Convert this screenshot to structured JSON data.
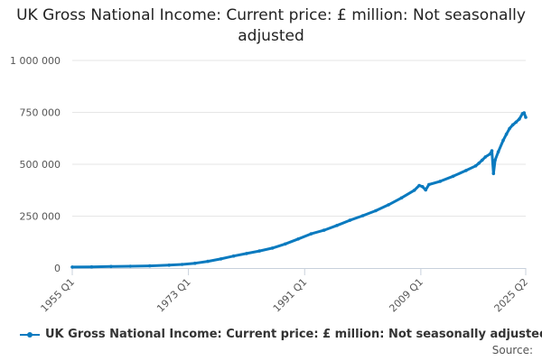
{
  "chart_data": {
    "type": "line",
    "title": "UK Gross National Income: Current price: £ million: Not seasonally adjusted",
    "xlabel": "",
    "ylabel": "",
    "ylim": [
      0,
      1000000
    ],
    "y_ticks": [
      {
        "value": 0,
        "label": "0"
      },
      {
        "value": 250000,
        "label": "250 000"
      },
      {
        "value": 500000,
        "label": "500 000"
      },
      {
        "value": 750000,
        "label": "750 000"
      },
      {
        "value": 1000000,
        "label": "1 000 000"
      }
    ],
    "x_range": [
      1955.0,
      2025.25
    ],
    "x_ticks": [
      {
        "value": 1955.0,
        "label": "1955 Q1"
      },
      {
        "value": 1973.0,
        "label": "1973 Q1"
      },
      {
        "value": 1991.0,
        "label": "1991 Q1"
      },
      {
        "value": 2009.0,
        "label": "2009 Q1"
      },
      {
        "value": 2025.25,
        "label": "2025 Q2"
      }
    ],
    "grid": true,
    "legend_position": "bottom-left",
    "series": [
      {
        "name": "UK Gross National Income: Current price: £ million: Not seasonally adjusted",
        "color": "#0a7abf",
        "points": [
          [
            1955.0,
            4800
          ],
          [
            1958.0,
            5800
          ],
          [
            1961.0,
            7200
          ],
          [
            1964.0,
            8800
          ],
          [
            1967.0,
            10500
          ],
          [
            1970.0,
            14000
          ],
          [
            1972.0,
            17500
          ],
          [
            1974.0,
            23000
          ],
          [
            1976.0,
            32000
          ],
          [
            1978.0,
            44000
          ],
          [
            1980.0,
            58000
          ],
          [
            1982.0,
            70000
          ],
          [
            1984.0,
            82000
          ],
          [
            1986.0,
            96000
          ],
          [
            1988.0,
            116000
          ],
          [
            1990.0,
            140000
          ],
          [
            1992.0,
            165000
          ],
          [
            1994.0,
            182000
          ],
          [
            1996.0,
            205000
          ],
          [
            1998.0,
            230000
          ],
          [
            2000.0,
            252000
          ],
          [
            2002.0,
            276000
          ],
          [
            2004.0,
            305000
          ],
          [
            2006.0,
            338000
          ],
          [
            2008.0,
            375000
          ],
          [
            2008.75,
            398000
          ],
          [
            2009.25,
            392000
          ],
          [
            2009.75,
            376000
          ],
          [
            2010.25,
            402000
          ],
          [
            2012.0,
            418000
          ],
          [
            2014.0,
            442000
          ],
          [
            2016.0,
            470000
          ],
          [
            2017.5,
            492000
          ],
          [
            2018.0,
            505000
          ],
          [
            2018.5,
            520000
          ],
          [
            2019.0,
            535000
          ],
          [
            2019.75,
            550000
          ],
          [
            2020.0,
            565000
          ],
          [
            2020.25,
            455000
          ],
          [
            2020.5,
            520000
          ],
          [
            2021.0,
            560000
          ],
          [
            2021.75,
            615000
          ],
          [
            2022.25,
            645000
          ],
          [
            2022.75,
            672000
          ],
          [
            2023.25,
            690000
          ],
          [
            2023.75,
            703000
          ],
          [
            2024.25,
            718000
          ],
          [
            2024.75,
            744000
          ],
          [
            2025.0,
            748000
          ],
          [
            2025.25,
            726000
          ]
        ]
      }
    ],
    "source_label": "Source:"
  }
}
